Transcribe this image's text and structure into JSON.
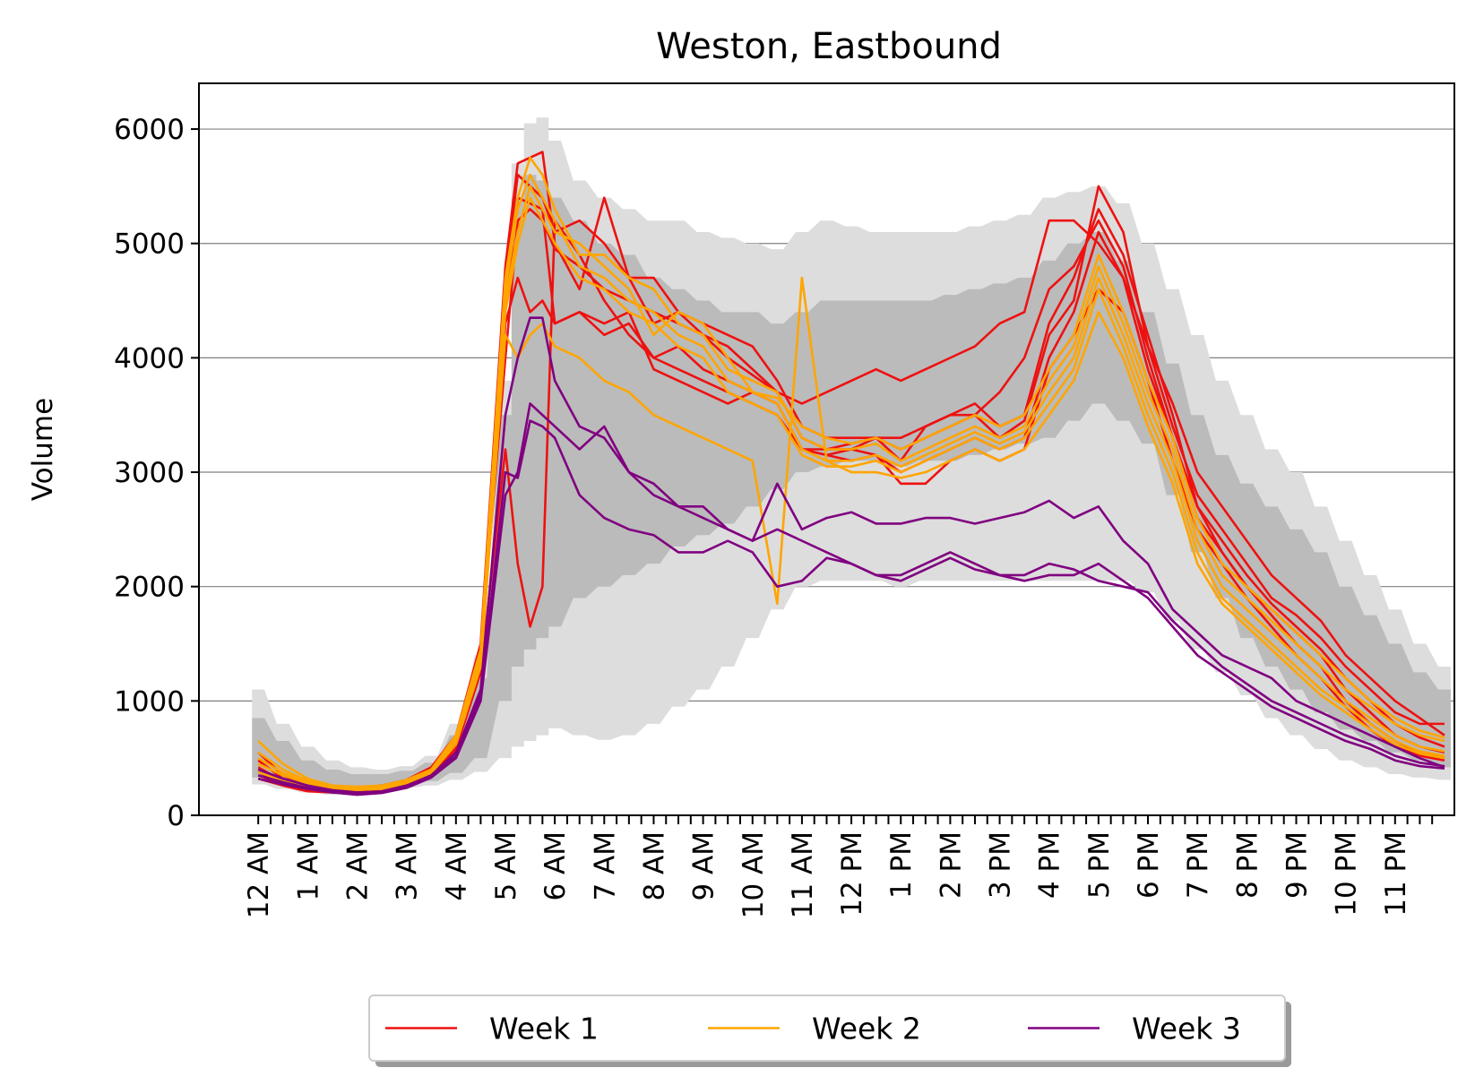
{
  "chart_data": {
    "type": "line",
    "title": "Weston, Eastbound",
    "xlabel": "",
    "ylabel": "Volume",
    "ylim": [
      0,
      6400
    ],
    "yticks": [
      0,
      1000,
      2000,
      3000,
      4000,
      5000,
      6000
    ],
    "x_unit": "hour of day (15-minute intervals)",
    "xlim": [
      -1.2,
      24.2
    ],
    "xtick_labels": [
      "12 AM",
      "1 AM",
      "2 AM",
      "3 AM",
      "4 AM",
      "5 AM",
      "6 AM",
      "7 AM",
      "8 AM",
      "9 AM",
      "10 AM",
      "11 AM",
      "12 PM",
      "1 PM",
      "2 PM",
      "3 PM",
      "4 PM",
      "5 PM",
      "6 PM",
      "7 PM",
      "8 PM",
      "9 PM",
      "10 PM",
      "11 PM"
    ],
    "grid": "horizontal",
    "legend_position": "bottom-center",
    "band_hours": [
      0,
      0.5,
      1,
      1.5,
      2,
      2.5,
      3,
      3.5,
      4,
      4.5,
      5,
      5.25,
      5.5,
      5.75,
      6,
      6.5,
      7,
      7.5,
      8,
      8.5,
      9,
      9.5,
      10,
      10.5,
      11,
      11.5,
      12,
      12.5,
      13,
      13.5,
      14,
      14.5,
      15,
      15.5,
      16,
      16.5,
      17,
      17.5,
      18,
      18.5,
      19,
      19.5,
      20,
      20.5,
      21,
      21.5,
      22,
      22.5,
      23,
      23.5,
      24
    ],
    "bands": [
      {
        "name": "outer range",
        "color": "#dddddd",
        "lower": [
          270,
          230,
          200,
          180,
          190,
          210,
          240,
          260,
          310,
          380,
          500,
          600,
          650,
          700,
          760,
          700,
          660,
          700,
          800,
          950,
          1100,
          1300,
          1550,
          1800,
          2000,
          2050,
          2050,
          2050,
          2000,
          2050,
          2050,
          2050,
          2050,
          2050,
          2050,
          2050,
          2050,
          2050,
          1950,
          1700,
          1450,
          1250,
          1050,
          850,
          700,
          580,
          480,
          420,
          360,
          330,
          310
        ],
        "upper": [
          1100,
          800,
          600,
          480,
          420,
          400,
          430,
          520,
          800,
          1400,
          3800,
          5700,
          6050,
          6100,
          5900,
          5550,
          5400,
          5300,
          5200,
          5200,
          5100,
          5050,
          5000,
          4950,
          5100,
          5200,
          5150,
          5100,
          5100,
          5100,
          5100,
          5150,
          5200,
          5250,
          5400,
          5450,
          5500,
          5350,
          5000,
          4600,
          4200,
          3800,
          3500,
          3200,
          3000,
          2700,
          2400,
          2100,
          1800,
          1500,
          1300
        ]
      },
      {
        "name": "inner range",
        "color": "#bbbbbb",
        "lower": [
          330,
          280,
          240,
          220,
          220,
          240,
          260,
          300,
          370,
          500,
          1000,
          1300,
          1450,
          1550,
          1650,
          1900,
          2000,
          2100,
          2200,
          2350,
          2450,
          2550,
          2700,
          2850,
          3000,
          3050,
          3100,
          3100,
          3050,
          3100,
          3100,
          3150,
          3200,
          3250,
          3300,
          3450,
          3600,
          3450,
          3250,
          2800,
          2300,
          1900,
          1550,
          1300,
          1100,
          900,
          750,
          650,
          550,
          480,
          420
        ],
        "upper": [
          850,
          650,
          480,
          400,
          360,
          360,
          390,
          460,
          700,
          1200,
          3500,
          5400,
          5600,
          5550,
          5400,
          5200,
          5000,
          4900,
          4700,
          4600,
          4500,
          4400,
          4400,
          4300,
          4400,
          4500,
          4500,
          4500,
          4500,
          4500,
          4550,
          4600,
          4650,
          4700,
          4850,
          5000,
          5100,
          4850,
          4400,
          3950,
          3500,
          3150,
          2900,
          2700,
          2500,
          2300,
          2000,
          1750,
          1500,
          1250,
          1100
        ]
      }
    ],
    "x_hours": [
      0,
      0.5,
      1,
      1.5,
      2,
      2.5,
      3,
      3.5,
      4,
      4.5,
      5,
      5.25,
      5.5,
      5.75,
      6,
      6.5,
      7,
      7.5,
      8,
      8.5,
      9,
      9.5,
      10,
      10.5,
      11,
      11.5,
      12,
      12.5,
      13,
      13.5,
      14,
      14.5,
      15,
      15.5,
      16,
      16.5,
      17,
      17.5,
      18,
      18.5,
      19,
      19.5,
      20,
      20.5,
      21,
      21.5,
      22,
      22.5,
      23,
      23.5,
      24
    ],
    "series": [
      {
        "name": "Week 1",
        "color": "#ee1111",
        "lines": [
          [
            550,
            350,
            250,
            220,
            240,
            260,
            310,
            420,
            700,
            1500,
            4800,
            5700,
            5750,
            5800,
            5000,
            4600,
            5400,
            4700,
            4700,
            4400,
            4300,
            4200,
            4100,
            3800,
            3400,
            3300,
            3300,
            3300,
            3200,
            3300,
            3400,
            3500,
            3300,
            3450,
            4200,
            4500,
            5500,
            5100,
            4100,
            3400,
            2800,
            2500,
            2200,
            1900,
            1750,
            1550,
            1300,
            1100,
            900,
            800,
            800
          ],
          [
            420,
            300,
            230,
            210,
            220,
            240,
            290,
            390,
            650,
            1400,
            4700,
            5600,
            5500,
            5400,
            5100,
            5200,
            5000,
            4700,
            4300,
            4400,
            4200,
            4100,
            3900,
            3700,
            3300,
            3200,
            3250,
            3300,
            3100,
            3400,
            3500,
            3600,
            3400,
            3500,
            4300,
            4700,
            5300,
            4900,
            4200,
            3500,
            2700,
            2300,
            2000,
            1800,
            1600,
            1400,
            1100,
            900,
            700,
            600,
            550
          ],
          [
            380,
            280,
            220,
            200,
            210,
            230,
            280,
            370,
            600,
            1300,
            4300,
            4700,
            4400,
            4500,
            4300,
            4400,
            4300,
            4400,
            3900,
            3800,
            3700,
            3600,
            3700,
            3600,
            3200,
            3200,
            3200,
            3300,
            3300,
            3400,
            3500,
            3500,
            3700,
            4000,
            4600,
            4800,
            5200,
            4800,
            4000,
            3300,
            2600,
            2300,
            2000,
            1750,
            1500,
            1300,
            1000,
            800,
            650,
            550,
            500
          ],
          [
            320,
            260,
            210,
            200,
            210,
            230,
            270,
            360,
            580,
            1250,
            3200,
            2200,
            1650,
            2000,
            5200,
            4900,
            4500,
            4200,
            4000,
            3900,
            3800,
            3700,
            3600,
            3500,
            3200,
            3150,
            3200,
            3150,
            2900,
            2900,
            3100,
            3200,
            3100,
            3200,
            3900,
            4200,
            4600,
            4400,
            3800,
            3100,
            2500,
            2200,
            1900,
            1650,
            1400,
            1200,
            950,
            750,
            600,
            520,
            480
          ],
          [
            480,
            320,
            240,
            210,
            230,
            250,
            300,
            400,
            680,
            1450,
            4000,
            5200,
            5300,
            5200,
            4950,
            4800,
            4600,
            4500,
            4400,
            4300,
            4200,
            4000,
            3850,
            3700,
            3600,
            3700,
            3800,
            3900,
            3800,
            3900,
            4000,
            4100,
            4300,
            4400,
            5200,
            5200,
            5000,
            4700,
            4100,
            3600,
            3000,
            2700,
            2400,
            2100,
            1900,
            1700,
            1400,
            1200,
            1000,
            850,
            700
          ],
          [
            350,
            270,
            220,
            200,
            210,
            230,
            280,
            370,
            620,
            1350,
            4400,
            5400,
            5350,
            5300,
            4300,
            4400,
            4200,
            4300,
            4000,
            4100,
            3900,
            3800,
            3700,
            3600,
            3200,
            3150,
            3100,
            3150,
            3000,
            3100,
            3200,
            3300,
            3200,
            3300,
            4000,
            4400,
            5100,
            4700,
            3900,
            3300,
            2700,
            2400,
            2100,
            1850,
            1650,
            1450,
            1200,
            1000,
            800,
            680,
            600
          ]
        ]
      },
      {
        "name": "Week 2",
        "color": "#ffa500",
        "lines": [
          [
            650,
            450,
            320,
            260,
            250,
            260,
            310,
            400,
            700,
            1450,
            4700,
            5400,
            5750,
            5600,
            5300,
            4900,
            4900,
            4700,
            4600,
            4300,
            4200,
            3900,
            3800,
            3700,
            3300,
            3200,
            3200,
            3250,
            3100,
            3200,
            3300,
            3400,
            3300,
            3400,
            3800,
            4100,
            4800,
            4300,
            3700,
            3200,
            2500,
            2100,
            1900,
            1700,
            1500,
            1300,
            1100,
            950,
            800,
            700,
            650
          ],
          [
            550,
            400,
            300,
            250,
            240,
            250,
            300,
            390,
            680,
            1400,
            4600,
            5300,
            5600,
            5400,
            5200,
            4800,
            4700,
            4500,
            4400,
            4200,
            4100,
            3800,
            3700,
            3600,
            3200,
            3100,
            3100,
            3150,
            3050,
            3150,
            3250,
            3350,
            3250,
            3350,
            3700,
            4000,
            4700,
            4200,
            3600,
            3100,
            2400,
            2000,
            1800,
            1600,
            1400,
            1200,
            1000,
            850,
            700,
            600,
            560
          ],
          [
            450,
            350,
            280,
            240,
            230,
            240,
            290,
            380,
            650,
            1350,
            4400,
            5000,
            5400,
            5200,
            5000,
            4700,
            4600,
            4400,
            4300,
            4100,
            4000,
            3700,
            3600,
            3500,
            3150,
            3050,
            3050,
            3100,
            3000,
            3100,
            3200,
            3300,
            3200,
            3300,
            3600,
            3900,
            4600,
            4100,
            3500,
            3000,
            2300,
            1900,
            1700,
            1500,
            1300,
            1100,
            950,
            800,
            650,
            560,
            520
          ],
          [
            380,
            300,
            250,
            220,
            220,
            230,
            280,
            370,
            620,
            1300,
            4200,
            4000,
            4200,
            4300,
            4100,
            4000,
            3800,
            3700,
            3500,
            3400,
            3300,
            3200,
            3100,
            1850,
            4700,
            3100,
            3000,
            3000,
            2950,
            3000,
            3100,
            3200,
            3100,
            3200,
            3500,
            3800,
            4400,
            4000,
            3400,
            2900,
            2200,
            1850,
            1650,
            1450,
            1250,
            1050,
            900,
            750,
            620,
            540,
            500
          ],
          [
            500,
            370,
            290,
            240,
            235,
            245,
            295,
            385,
            660,
            1380,
            4500,
            5100,
            5500,
            5300,
            5100,
            5000,
            4800,
            4600,
            4200,
            4400,
            4300,
            4000,
            3700,
            3650,
            3400,
            3300,
            3250,
            3300,
            3200,
            3300,
            3400,
            3500,
            3400,
            3500,
            3900,
            4200,
            4900,
            4400,
            3800,
            3300,
            2600,
            2200,
            2000,
            1800,
            1600,
            1400,
            1200,
            1000,
            850,
            740,
            680
          ]
        ]
      },
      {
        "name": "Week 3",
        "color": "#800080",
        "lines": [
          [
            400,
            320,
            260,
            220,
            200,
            210,
            260,
            350,
            550,
            1100,
            3500,
            4000,
            4350,
            4350,
            3800,
            3400,
            3300,
            3000,
            2800,
            2700,
            2700,
            2500,
            2400,
            2500,
            2400,
            2300,
            2200,
            2100,
            2100,
            2200,
            2300,
            2200,
            2100,
            2100,
            2200,
            2150,
            2050,
            2000,
            1950,
            1700,
            1500,
            1300,
            1150,
            1000,
            900,
            800,
            700,
            620,
            520,
            460,
            430
          ],
          [
            350,
            290,
            240,
            210,
            190,
            200,
            250,
            340,
            520,
            1050,
            3000,
            2950,
            3450,
            3400,
            3300,
            2800,
            2600,
            2500,
            2450,
            2300,
            2300,
            2400,
            2300,
            2000,
            2050,
            2250,
            2200,
            2100,
            2050,
            2150,
            2250,
            2150,
            2100,
            2050,
            2100,
            2100,
            2200,
            2050,
            1900,
            1650,
            1400,
            1250,
            1100,
            950,
            850,
            750,
            650,
            580,
            480,
            430,
            410
          ],
          [
            320,
            270,
            230,
            200,
            180,
            195,
            240,
            330,
            500,
            1000,
            2800,
            3000,
            3600,
            3500,
            3400,
            3200,
            3400,
            3000,
            2900,
            2700,
            2600,
            2500,
            2400,
            2900,
            2500,
            2600,
            2650,
            2550,
            2550,
            2600,
            2600,
            2550,
            2600,
            2650,
            2750,
            2600,
            2700,
            2400,
            2200,
            1800,
            1600,
            1400,
            1300,
            1200,
            1000,
            900,
            800,
            700,
            600,
            500,
            420
          ]
        ]
      }
    ]
  }
}
